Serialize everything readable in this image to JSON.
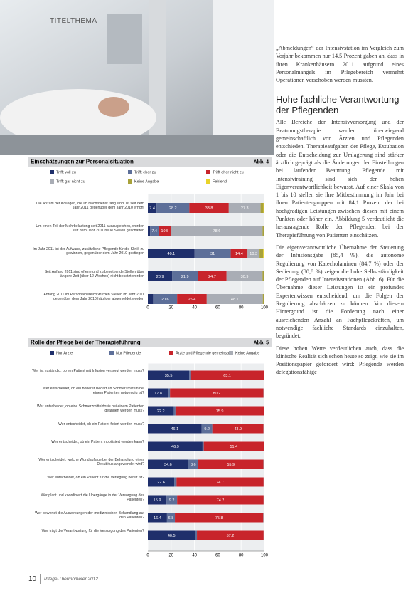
{
  "header": {
    "section": "TITELTHEMA"
  },
  "chart_data": [
    {
      "type": "bar",
      "orientation": "horizontal",
      "stacked": true,
      "title": "Einschätzungen zur Personalsituation",
      "figure_label": "Abb. 4",
      "categories": [
        "Die Anzahl der Kollegen, die im Nachtdienst tätig sind, ist seit dem Jahr 2011 gegenüber dem Jahr 2010 erhöht",
        "Um einen Teil der Mehrbelastung seit 2011 auszugleichen, wurden seit dem Jahr 2011 neue Stellen geschaffen",
        "Im Jahr 2011 ist der Aufwand, zusätzliche Pflegende für die Klinik zu gewinnen, gegenüber dem Jahr 2010 gestiegen",
        "Seit Anfang 2011 sind offene und zu besetzende Stellen über längere Zeit (über 12 Wochen) nicht besetzt worden",
        "Anfang 2011 im Personalbereich wurden Stellen im Jahr 2011 gegenüber dem Jahr 2010 häufiger abgemeldet worden"
      ],
      "series": [
        {
          "name": "Trifft voll zu",
          "color": "#1f2f6b",
          "values": [
            7.4,
            1.9,
            40.1,
            20.9,
            4.5
          ]
        },
        {
          "name": "Trifft eher zu",
          "color": "#5d6f99",
          "values": [
            28.2,
            7.4,
            31.0,
            21.9,
            20.6
          ]
        },
        {
          "name": "Trifft eher nicht zu",
          "color": "#c8242b",
          "values": [
            33.8,
            10.5,
            14.4,
            24.7,
            25.4
          ]
        },
        {
          "name": "Trifft gar nicht zu",
          "color": "#a9adb5",
          "values": [
            27.3,
            78.6,
            10.3,
            30.9,
            48.1
          ]
        },
        {
          "name": "Keine Angabe",
          "color": "#a8a23a",
          "values": [
            2.4,
            1.0,
            3.1,
            1.0,
            0.8
          ]
        },
        {
          "name": "Fehlend",
          "color": "#e9d32a",
          "values": [
            0.9,
            0.6,
            1.1,
            0.6,
            0.6
          ]
        }
      ],
      "xlim": [
        0,
        100
      ],
      "xticks": [
        0,
        20,
        40,
        60,
        80,
        100
      ]
    },
    {
      "type": "bar",
      "orientation": "horizontal",
      "stacked": true,
      "title": "Rolle der Pflege bei der Therapieführung",
      "figure_label": "Abb. 5",
      "categories": [
        "Wer ist zuständig, ob ein Patient mit Infusion versorgt werden muss?",
        "Wer entscheidet, ob ein höherer Bedarf an Schmerzmitteln bei einem Patienten notwendig ist?",
        "Wer entscheidet, ob eine Schmerzmitteldosis bei einem Patienten geändert werden muss?",
        "Wer entscheidet, ob ein Patient fixiert werden muss?",
        "Wer entscheidet, ob ein Patient mobilisiert werden kann?",
        "Wer entscheidet, welche Wundauflage bei der Behandlung eines Dekubitus angewendet wird?",
        "Wer entscheidet, ob ein Patient für die Verlegung bereit ist?",
        "Wer plant und koordiniert die Übergänge in der Versorgung des Patienten?",
        "Wer bewertet die Auswirkungen der medizinischen Behandlung auf den Patienten?",
        "Wer trägt die Verantwortung für die Versorgung des Patienten?"
      ],
      "series": [
        {
          "name": "Nur Ärzte",
          "color": "#1f2f6b",
          "values": [
            35.5,
            17.8,
            22.2,
            46.1,
            46.9,
            34.6,
            22.6,
            15.9,
            16.4,
            40.5
          ]
        },
        {
          "name": "Nur Pflegende",
          "color": "#5d6f99",
          "values": [
            1.0,
            1.2,
            1.5,
            9.2,
            1.1,
            8.6,
            2.0,
            9.2,
            6.8,
            1.6
          ]
        },
        {
          "name": "Ärzte und Pflegende gemeinsam",
          "color": "#c8242b",
          "values": [
            63.1,
            80.2,
            75.9,
            43.9,
            51.4,
            55.9,
            74.7,
            74.2,
            75.8,
            57.2
          ]
        },
        {
          "name": "Keine Angabe",
          "color": "#a9adb5",
          "values": [
            0.4,
            0.8,
            0.4,
            0.8,
            0.6,
            0.9,
            0.7,
            0.7,
            1.0,
            0.7
          ]
        }
      ],
      "xlim": [
        0,
        100
      ],
      "xticks": [
        0,
        20,
        40,
        60,
        80,
        100
      ]
    }
  ],
  "article": {
    "intro": "„Abmeldungen“ der Intensivstation im Vergleich zum Vorjahr bekommen nur 14,5 Prozent gaben an, dass in ihren Krankenhäusern 2011 aufgrund eines Personalmangels im Pflegebereich vermehrt Operationen verschoben werden mussten.",
    "heading": "Hohe fachliche Verantwortung der Pflegenden",
    "paragraphs": [
      "Alle Bereiche der Intensivversorgung und der Beatmungstherapie werden überwiegend gemeinschaftlich von Ärzten und Pflegenden entschieden. Therapieaufgaben der Pflege, Extubation oder die Entscheidung zur Umlagerung sind stärker ärztlich geprägt als die Änderungen der Einstellungen bei laufender Beatmung. Pflegende mit Intensivtraining sind sich der hohen Eigenverantwortlichkeit bewusst. Auf einer Skala von 1 bis 10 stellen sie ihre Mitbestimmung im Jahr bei ihren Patientengruppen mit 84,1 Prozent der bei hochgradigen Leistungen zwischen diesen mit einem Punkten oder höher ein. Abbildung 5 verdeutlicht die herausragende Rolle der Pflegenden bei der Therapieführung von Patienten einschätzen.",
      "Die eigenverantwortliche Übernahme der Steuerung der Infusionsgabe (85,4 %), die autonome Regulierung von Katecholaminen (84,7 %) oder der Sedierung (80,8 %) zeigen die hohe Selbstständigkeit der Pflegenden auf Intensivstationen (Abb. 6). Für die Übernahme dieser Leistungen ist ein profundes Expertenwissen entscheidend, um die Folgen der Regulierung abschätzen zu können. Vor diesem Hintergrund ist die Forderung nach einer ausreichenden Anzahl an Fachpflegekräften, um notwendige fachliche Standards einzuhalten, begründet.",
      "Diese hohen Werte verdeutlichen auch, dass die klinische Realität sich schon heute so zeigt, wie sie im Positionspapier gefordert wird: Pflegende werden delegationsfähige"
    ]
  },
  "footer": {
    "page": "10",
    "publication": "Pflege-Thermometer 2012"
  }
}
